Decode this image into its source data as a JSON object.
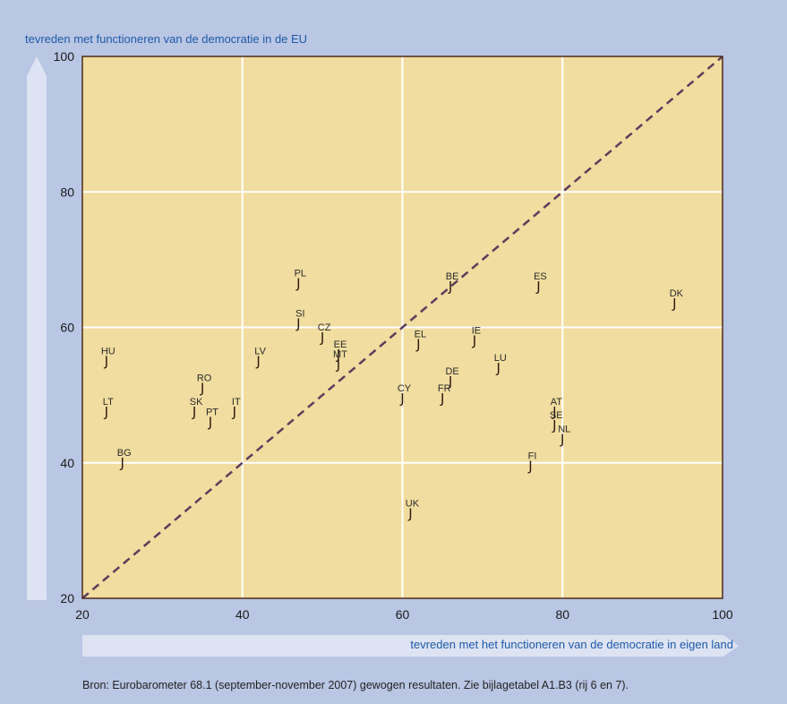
{
  "colors": {
    "background": "#b9c6e4",
    "plot_area": "#f1dd9f",
    "plot_border": "#4a2a1a",
    "grid": "#ffffff",
    "diagonal": "#5a3d5c",
    "arrow": "#dde3f3",
    "label_text": "#1e5aa8"
  },
  "marker_glyph": "J",
  "source": "Bron: Eurobarometer 68.1 (september-november 2007) gewogen resultaten. Zie bijlagetabel A1.B3 (rij 6 en 7).",
  "chart_data": {
    "type": "scatter",
    "title": "",
    "xlabel": "tevreden met het functioneren van de democratie in eigen land",
    "ylabel": "tevreden met functioneren van de democratie in de EU",
    "xlim": [
      20,
      100
    ],
    "ylim": [
      20,
      100
    ],
    "xticks": [
      20,
      40,
      60,
      80,
      100
    ],
    "yticks": [
      20,
      40,
      60,
      80,
      100
    ],
    "grid": true,
    "reference_line": "diagonal y = x (dashed)",
    "points": [
      {
        "label": "HU",
        "x": 23,
        "y": 55
      },
      {
        "label": "LT",
        "x": 23,
        "y": 47.5
      },
      {
        "label": "BG",
        "x": 25,
        "y": 40
      },
      {
        "label": "RO",
        "x": 35,
        "y": 51
      },
      {
        "label": "SK",
        "x": 34,
        "y": 47.5
      },
      {
        "label": "PT",
        "x": 36,
        "y": 46
      },
      {
        "label": "IT",
        "x": 39,
        "y": 47.5
      },
      {
        "label": "LV",
        "x": 42,
        "y": 55
      },
      {
        "label": "PL",
        "x": 47,
        "y": 66.5
      },
      {
        "label": "SI",
        "x": 47,
        "y": 60.5
      },
      {
        "label": "CZ",
        "x": 50,
        "y": 58.5
      },
      {
        "label": "EE",
        "x": 52,
        "y": 56
      },
      {
        "label": "MT",
        "x": 52,
        "y": 54.5
      },
      {
        "label": "EL",
        "x": 62,
        "y": 57.5
      },
      {
        "label": "IE",
        "x": 69,
        "y": 58
      },
      {
        "label": "BE",
        "x": 66,
        "y": 66
      },
      {
        "label": "ES",
        "x": 77,
        "y": 66
      },
      {
        "label": "DK",
        "x": 94,
        "y": 63.5
      },
      {
        "label": "LU",
        "x": 72,
        "y": 54
      },
      {
        "label": "DE",
        "x": 66,
        "y": 52
      },
      {
        "label": "FR",
        "x": 65,
        "y": 49.5
      },
      {
        "label": "CY",
        "x": 60,
        "y": 49.5
      },
      {
        "label": "AT",
        "x": 79,
        "y": 47.5
      },
      {
        "label": "SE",
        "x": 79,
        "y": 45.5
      },
      {
        "label": "NL",
        "x": 80,
        "y": 43.5
      },
      {
        "label": "FI",
        "x": 76,
        "y": 39.5
      },
      {
        "label": "UK",
        "x": 61,
        "y": 32.5
      }
    ]
  }
}
